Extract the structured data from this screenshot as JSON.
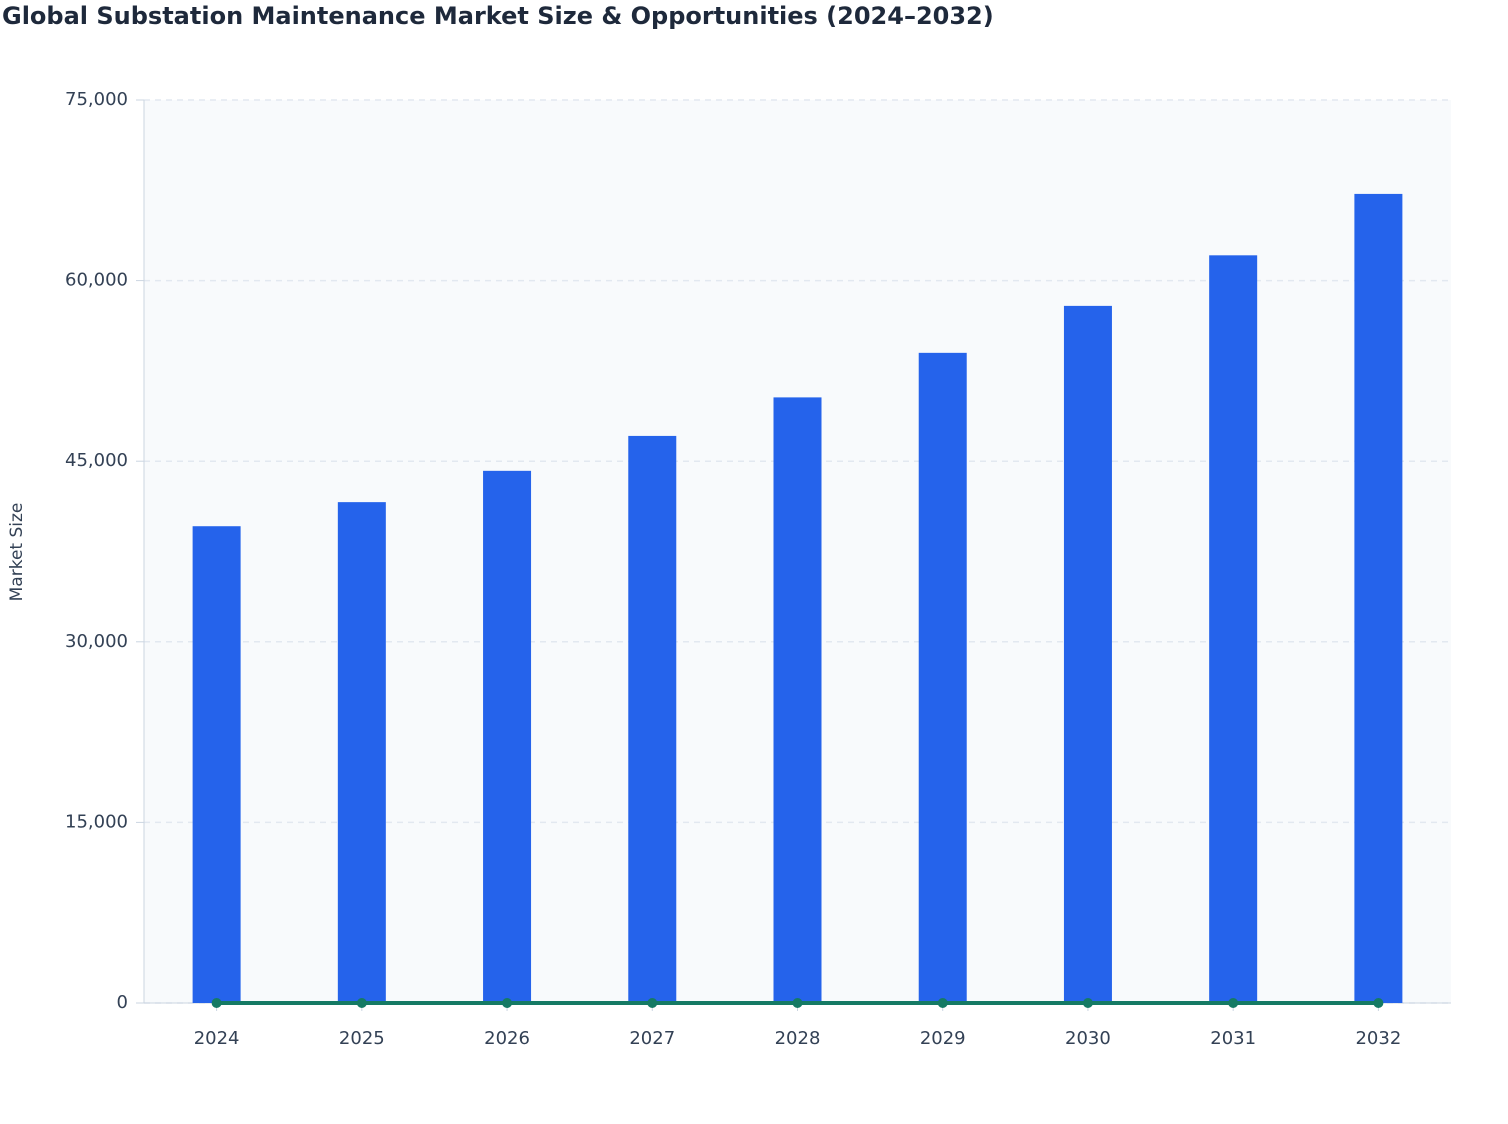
{
  "chart_data": {
    "type": "bar",
    "title": "Global Substation Maintenance Market Size & Opportunities (2024–2032)",
    "y_label": "Market Size",
    "categories": [
      "2024",
      "2025",
      "2026",
      "2027",
      "2028",
      "2029",
      "2030",
      "2031",
      "2032"
    ],
    "series": [
      {
        "type": "bar",
        "color": "#2563eb",
        "values": [
          39600,
          41600,
          44200,
          47100,
          50300,
          54000,
          57900,
          62100,
          67200
        ]
      },
      {
        "type": "line",
        "color": "#157a64",
        "values": [
          0,
          0,
          0,
          0,
          0,
          0,
          0,
          0,
          0
        ]
      }
    ],
    "ylim": [
      0,
      75000
    ],
    "yticks": [
      0,
      {
        "value": 15000,
        "label": "15,000"
      },
      {
        "value": 30000,
        "label": "30,000"
      },
      {
        "value": 45000,
        "label": "45,000"
      },
      {
        "value": 60000,
        "label": "60,000"
      },
      {
        "value": 75000,
        "label": "75,000"
      }
    ],
    "grid": true
  }
}
